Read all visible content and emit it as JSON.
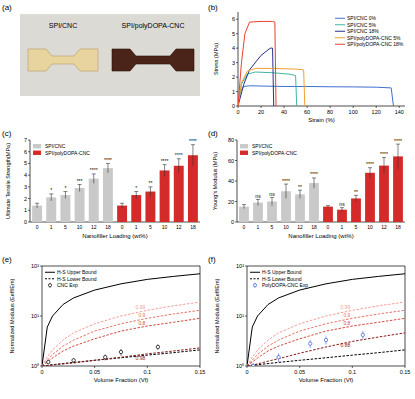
{
  "photo": {
    "panel_label": "(a)",
    "samples": [
      "SPI/CNC",
      "SPI/polyDOPA-CNC"
    ]
  },
  "chart_data": [
    {
      "panel_label": "(b)",
      "type": "line",
      "x_label": "Strain (%)",
      "y_label": "Stress (MPa)",
      "xlim": [
        0,
        145
      ],
      "xticks": [
        0,
        20,
        40,
        60,
        80,
        100,
        120,
        140
      ],
      "ylim": [
        0,
        6.5
      ],
      "yticks": [
        0,
        1,
        2,
        3,
        4,
        5,
        6
      ],
      "legend": "upper right",
      "series": [
        {
          "name": "SPI/CNC 0%",
          "color": "#3f6fd1",
          "x": [
            0,
            2,
            5,
            10,
            20,
            40,
            60,
            80,
            100,
            120,
            133,
            135
          ],
          "values": [
            0,
            1.0,
            1.35,
            1.4,
            1.38,
            1.35,
            1.35,
            1.33,
            1.32,
            1.3,
            1.25,
            0
          ]
        },
        {
          "name": "SPI/CNC 5%",
          "color": "#3fb5a5",
          "x": [
            0,
            3,
            8,
            15,
            30,
            45,
            50,
            51
          ],
          "values": [
            0,
            1.5,
            2.2,
            2.35,
            2.3,
            2.2,
            2.1,
            0
          ]
        },
        {
          "name": "SPI/CNC 18%",
          "color": "#2b2f8f",
          "x": [
            0,
            5,
            10,
            20,
            28,
            30,
            31
          ],
          "values": [
            0,
            1.5,
            2.5,
            3.5,
            4.0,
            4.0,
            0
          ]
        },
        {
          "name": "SPI/polyDOPA-CNC 5%",
          "color": "#f0a030",
          "x": [
            0,
            3,
            8,
            15,
            30,
            50,
            57,
            58
          ],
          "values": [
            0,
            1.6,
            2.4,
            2.6,
            2.6,
            2.55,
            2.5,
            0
          ]
        },
        {
          "name": "SPI/polyDOPA-CNC 18%",
          "color": "#e8412c",
          "x": [
            0,
            3,
            6,
            10,
            20,
            30,
            32,
            33
          ],
          "values": [
            0,
            3,
            5,
            5.8,
            5.85,
            5.85,
            5.8,
            0
          ]
        }
      ]
    },
    {
      "panel_label": "(c)",
      "type": "bar",
      "x_label": "Nanofiller Loading (wt%)",
      "y_label": "Ultimate Tensile Strength(MPa)",
      "categories": [
        "0",
        "1",
        "5",
        "10",
        "12",
        "18",
        "0",
        "1",
        "5",
        "10",
        "12",
        "18"
      ],
      "ylim": [
        0,
        7
      ],
      "yticks": [
        0,
        1,
        2,
        3,
        4,
        5,
        6,
        7
      ],
      "legend": "upper left",
      "series": [
        {
          "name": "SPI/CNC",
          "color": "#c9c9c9",
          "values": [
            1.4,
            2.1,
            2.3,
            2.9,
            3.7,
            4.6,
            null,
            null,
            null,
            null,
            null,
            null
          ],
          "errors": [
            0.2,
            0.3,
            0.3,
            0.3,
            0.4,
            0.4,
            null,
            null,
            null,
            null,
            null,
            null
          ],
          "significance": [
            null,
            "*",
            "*",
            "***",
            "****",
            "****",
            null,
            null,
            null,
            null,
            null,
            null
          ]
        },
        {
          "name": "SPI/polyDOPA-CNC",
          "color": "#d42a2a",
          "values": [
            null,
            null,
            null,
            null,
            null,
            null,
            1.4,
            2.3,
            2.6,
            4.4,
            4.8,
            5.7
          ],
          "errors": [
            null,
            null,
            null,
            null,
            null,
            null,
            0.2,
            0.3,
            0.4,
            0.5,
            0.6,
            0.9
          ],
          "significance": [
            null,
            null,
            null,
            null,
            null,
            null,
            null,
            "*",
            "**",
            "****",
            "****",
            "****"
          ]
        }
      ]
    },
    {
      "panel_label": "(d)",
      "type": "bar",
      "x_label": "Nanofiller Loading (wt%)",
      "y_label": "Young's Modulus (MPa)",
      "categories": [
        "0",
        "1",
        "5",
        "10",
        "12",
        "18",
        "0",
        "1",
        "5",
        "10",
        "12",
        "18"
      ],
      "ylim": [
        0,
        80
      ],
      "yticks": [
        0,
        20,
        40,
        60,
        80
      ],
      "legend": "upper left",
      "series": [
        {
          "name": "SPI/CNC",
          "color": "#c9c9c9",
          "values": [
            15,
            19,
            20,
            30,
            27,
            38,
            null,
            null,
            null,
            null,
            null,
            null
          ],
          "errors": [
            2,
            3,
            4,
            7,
            4,
            5,
            null,
            null,
            null,
            null,
            null,
            null
          ],
          "significance": [
            null,
            "ns",
            "ns",
            "****",
            "**",
            "****",
            null,
            null,
            null,
            null,
            null,
            null
          ]
        },
        {
          "name": "SPI/polyDOPA-CNC",
          "color": "#d42a2a",
          "values": [
            null,
            null,
            null,
            null,
            null,
            null,
            15,
            12,
            23,
            48,
            55,
            64
          ],
          "errors": [
            null,
            null,
            null,
            null,
            null,
            null,
            1,
            2,
            3,
            5,
            8,
            12
          ],
          "significance": [
            null,
            null,
            null,
            null,
            null,
            null,
            null,
            "ns",
            "**",
            "****",
            "****",
            "****"
          ]
        }
      ]
    },
    {
      "panel_label": "(e)",
      "type": "line",
      "log": "y",
      "x_label": "Volume Fraction (Vf)",
      "y_label": "Normalized Modulus (Eeff/Em)",
      "xlim": [
        0,
        0.15
      ],
      "xticks": [
        0,
        0.05,
        0.1,
        0.15
      ],
      "ylim": [
        1,
        100
      ],
      "yticks": [
        {
          "value": 1,
          "label": "10⁰"
        },
        {
          "value": 10,
          "label": "10¹"
        },
        {
          "value": 100,
          "label": "10²"
        }
      ],
      "legend": "upper left",
      "x": [
        0,
        0.005,
        0.01,
        0.02,
        0.03,
        0.05,
        0.075,
        0.1,
        0.125,
        0.15
      ],
      "series": [
        {
          "name": "H-S Upper Bound",
          "color": "#000000",
          "line_style": "solid",
          "values": [
            1,
            6,
            10,
            17,
            23,
            33,
            44,
            54,
            62,
            70
          ]
        },
        {
          "name": "H-S Lower Bound",
          "color": "#000000",
          "line_style": "dashed",
          "values": [
            1,
            1.03,
            1.06,
            1.12,
            1.18,
            1.3,
            1.46,
            1.65,
            1.85,
            2.1
          ]
        },
        {
          "label": "0.99",
          "color": "#f2a09a",
          "line_style": "dashed",
          "values": [
            1,
            1.5,
            2.1,
            3.3,
            4.6,
            7,
            10,
            13,
            16,
            19
          ]
        },
        {
          "label": "0.9",
          "color": "#e57368",
          "line_style": "dashed",
          "values": [
            1,
            1.3,
            1.7,
            2.5,
            3.3,
            5,
            7,
            9,
            11,
            13
          ]
        },
        {
          "label": "0.8",
          "color": "#d04a40",
          "line_style": "dashed",
          "values": [
            1,
            1.2,
            1.45,
            2,
            2.5,
            3.5,
            5,
            6.3,
            7.5,
            9
          ]
        },
        {
          "label": "0.98",
          "color": "#8b1a1a",
          "line_style": "dashed",
          "values": [
            1,
            1.02,
            1.05,
            1.1,
            1.15,
            1.3,
            1.5,
            1.75,
            2,
            2.3
          ]
        },
        {
          "name": "CNC Exp",
          "type": "scatter",
          "marker": "circle",
          "color": "#000000",
          "x": [
            0.006,
            0.03,
            0.06,
            0.075,
            0.11
          ],
          "values": [
            1.2,
            1.3,
            1.5,
            1.9,
            2.4
          ],
          "errors": [
            0.1,
            0.15,
            0.2,
            0.3,
            0.3
          ]
        }
      ]
    },
    {
      "panel_label": "(f)",
      "type": "line",
      "log": "y",
      "x_label": "Volume Fraction (Vf)",
      "y_label": "Normalized Modulus (Eeff/Em)",
      "xlim": [
        0,
        0.15
      ],
      "xticks": [
        0,
        0.05,
        0.1,
        0.15
      ],
      "ylim": [
        1,
        100
      ],
      "yticks": [
        {
          "value": 1,
          "label": "10⁰"
        },
        {
          "value": 10,
          "label": "10¹"
        },
        {
          "value": 100,
          "label": "10²"
        }
      ],
      "legend": "upper left",
      "x": [
        0,
        0.005,
        0.01,
        0.02,
        0.03,
        0.05,
        0.075,
        0.1,
        0.125,
        0.15
      ],
      "series": [
        {
          "name": "H-S Upper Bound",
          "color": "#000000",
          "line_style": "solid",
          "values": [
            1,
            6,
            10,
            17,
            23,
            33,
            44,
            54,
            62,
            70
          ]
        },
        {
          "name": "H-S Lower Bound",
          "color": "#000000",
          "line_style": "dashed",
          "values": [
            1,
            1.03,
            1.06,
            1.12,
            1.18,
            1.3,
            1.46,
            1.65,
            1.85,
            2.1
          ]
        },
        {
          "label": "0.99",
          "color": "#f2a09a",
          "line_style": "dashed",
          "values": [
            1,
            1.5,
            2.1,
            3.3,
            4.6,
            7,
            10,
            13,
            16,
            19
          ]
        },
        {
          "label": "0.9",
          "color": "#e57368",
          "line_style": "dashed",
          "values": [
            1,
            1.3,
            1.7,
            2.5,
            3.3,
            5,
            7,
            9,
            11,
            13
          ]
        },
        {
          "label": "0.8",
          "color": "#d04a40",
          "line_style": "dashed",
          "values": [
            1,
            1.2,
            1.45,
            2,
            2.5,
            3.5,
            5,
            6.3,
            7.5,
            9
          ]
        },
        {
          "label": "0.88",
          "color": "#8b1a1a",
          "line_style": "dashed",
          "values": [
            1,
            1.05,
            1.1,
            1.25,
            1.4,
            1.8,
            2.4,
            3.1,
            3.8,
            4.6
          ]
        },
        {
          "name": "PolyDOPA-CNC Exp",
          "type": "scatter",
          "marker": "circle",
          "color": "#3b5bdb",
          "x": [
            0.006,
            0.03,
            0.06,
            0.075,
            0.11
          ],
          "values": [
            1.0,
            1.5,
            2.8,
            3.3,
            4.2
          ],
          "errors": [
            0.15,
            0.3,
            0.5,
            0.6,
            0.8
          ]
        }
      ]
    }
  ]
}
